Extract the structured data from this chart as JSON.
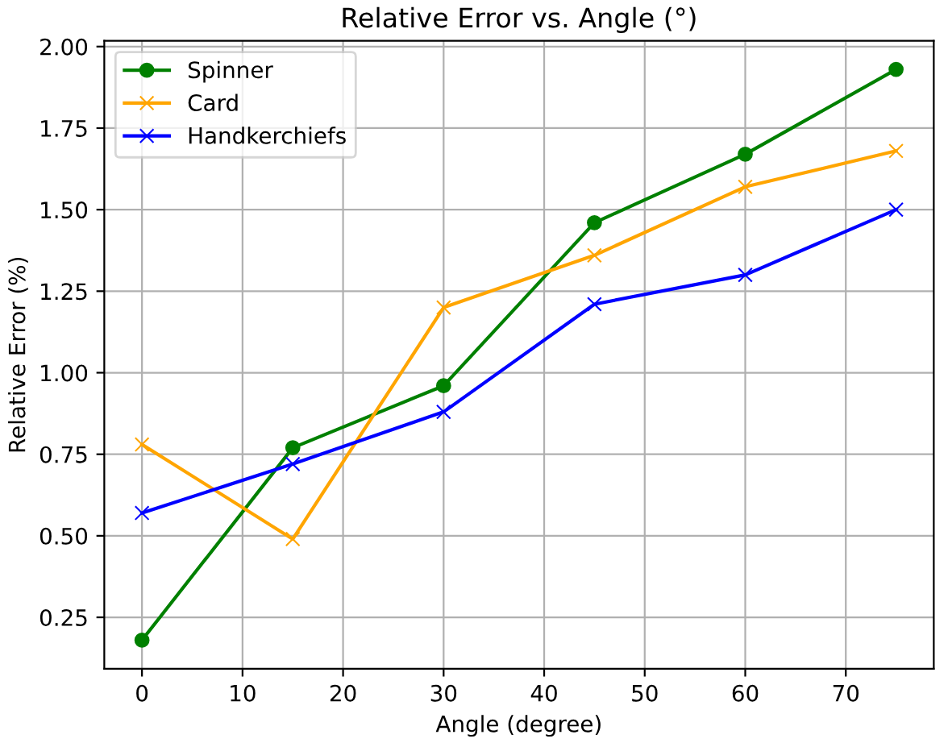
{
  "chart_data": {
    "type": "line",
    "title": "Relative Error vs. Angle (°)",
    "xlabel": "Angle (degree)",
    "ylabel": "Relative Error (%)",
    "x": [
      0,
      15,
      30,
      45,
      60,
      75
    ],
    "series": [
      {
        "name": "Spinner",
        "color": "#008000",
        "marker": "circle",
        "values": [
          0.18,
          0.77,
          0.96,
          1.46,
          1.67,
          1.93
        ]
      },
      {
        "name": "Card",
        "color": "#ffa500",
        "marker": "cross",
        "values": [
          0.78,
          0.49,
          1.2,
          1.36,
          1.57,
          1.68
        ]
      },
      {
        "name": "Handkerchiefs",
        "color": "#0000ff",
        "marker": "cross",
        "values": [
          0.57,
          0.72,
          0.88,
          1.21,
          1.3,
          1.5
        ]
      }
    ],
    "xlim": [
      -3.75,
      78.75
    ],
    "xticks": [
      0,
      10,
      20,
      30,
      40,
      50,
      60,
      70
    ],
    "ylim": [
      0.0925,
      2.0175
    ],
    "yticks": [
      {
        "value": 0.25,
        "label": "0.25"
      },
      {
        "value": 0.5,
        "label": "0.50"
      },
      {
        "value": 0.75,
        "label": "0.75"
      },
      {
        "value": 1.0,
        "label": "1.00"
      },
      {
        "value": 1.25,
        "label": "1.25"
      },
      {
        "value": 1.5,
        "label": "1.50"
      },
      {
        "value": 1.75,
        "label": "1.75"
      },
      {
        "value": 2.0,
        "label": "2.00"
      }
    ],
    "grid": true,
    "legend": "top left"
  }
}
